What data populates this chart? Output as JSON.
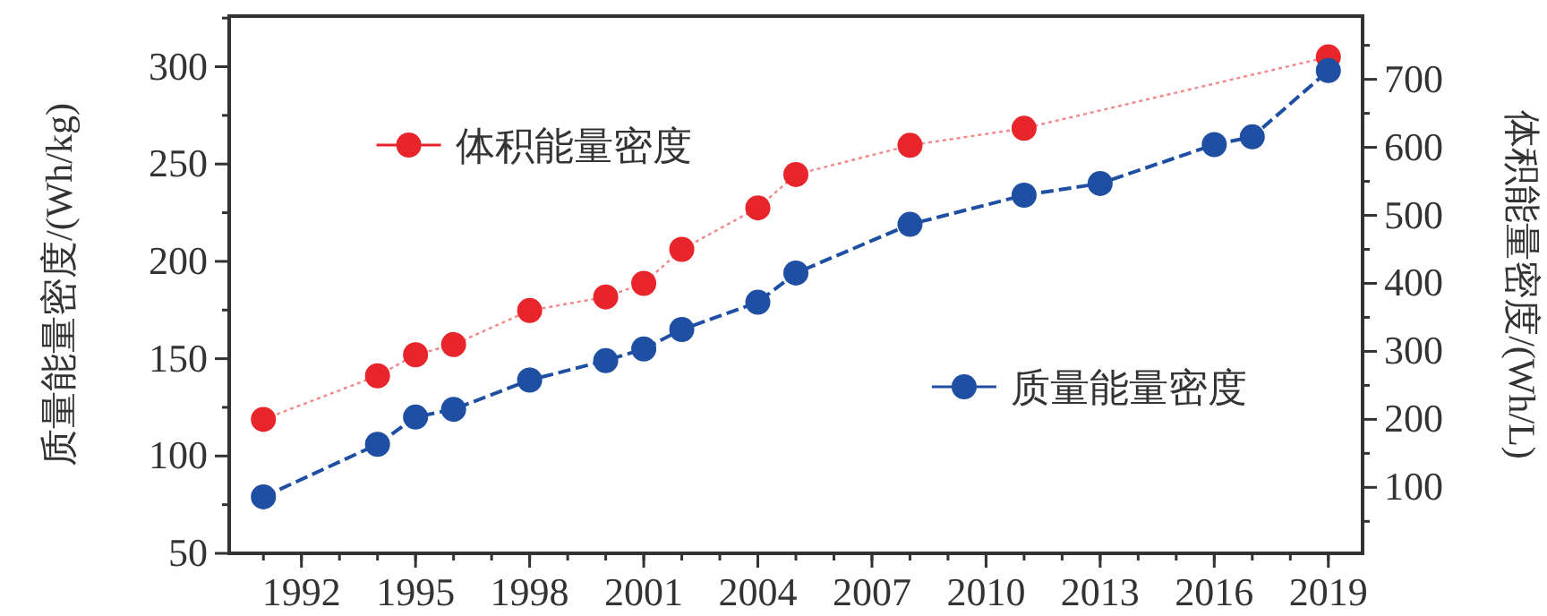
{
  "chart_data": {
    "type": "line",
    "ylabel": "质量能量密度/(Wh/kg)",
    "y2label": "体积能量密度/(Wh/L)",
    "xlim": [
      1990.1,
      2019.9
    ],
    "xticks": [
      1992,
      1995,
      1998,
      2001,
      2004,
      2007,
      2010,
      2013,
      2016,
      2019
    ],
    "ylim": [
      50,
      326
    ],
    "yticks": [
      50,
      100,
      150,
      200,
      250,
      300
    ],
    "y2lim": [
      3,
      793
    ],
    "y2ticks": [
      100,
      200,
      300,
      400,
      500,
      600,
      700
    ],
    "marker": "circle",
    "legend": "top left",
    "series": [
      {
        "name": "体积能量密度",
        "color": "#e8252a",
        "axis": "y2",
        "line_style": "dotted",
        "x": [
          1991,
          1994,
          1995,
          1996,
          1998,
          2000,
          2001,
          2002,
          2004,
          2005,
          2008,
          2011,
          2019
        ],
        "values": [
          200,
          264,
          295,
          310,
          360,
          380,
          400,
          450,
          511,
          560,
          603,
          628,
          733
        ]
      },
      {
        "name": "质量能量密度",
        "color": "#1f4fa3",
        "axis": "y",
        "line_style": "dashed",
        "x": [
          1991,
          1994,
          1995,
          1996,
          1998,
          2000,
          2001,
          2002,
          2004,
          2005,
          2008,
          2011,
          2013,
          2016,
          2017,
          2019
        ],
        "values": [
          79,
          106,
          120,
          124,
          139,
          149,
          155,
          165,
          179,
          194,
          219,
          234,
          240,
          260,
          264,
          298
        ]
      }
    ]
  }
}
